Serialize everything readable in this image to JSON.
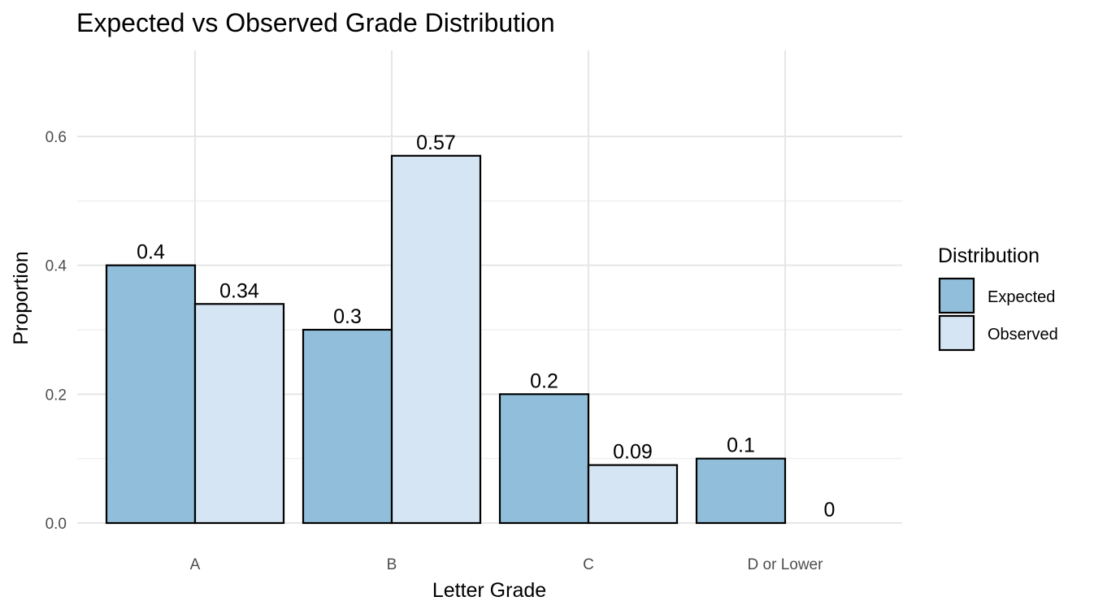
{
  "chart_data": {
    "type": "bar",
    "title": "Expected vs Observed Grade Distribution",
    "xlabel": "Letter Grade",
    "ylabel": "Proportion",
    "categories": [
      "A",
      "B",
      "C",
      "D or Lower"
    ],
    "series": [
      {
        "name": "Expected",
        "values": [
          0.4,
          0.3,
          0.2,
          0.1
        ],
        "labels": [
          "0.4",
          "0.3",
          "0.2",
          "0.1"
        ],
        "color": "#91bfdb"
      },
      {
        "name": "Observed",
        "values": [
          0.34,
          0.57,
          0.09,
          0
        ],
        "labels": [
          "0.34",
          "0.57",
          "0.09",
          "0"
        ],
        "color": "#d6e5f3"
      }
    ],
    "ylim": [
      0,
      0.7
    ],
    "yticks": [
      0.0,
      0.2,
      0.4,
      0.6
    ],
    "ytick_labels": [
      "0.0",
      "0.2",
      "0.4",
      "0.6"
    ],
    "grid": true,
    "legend": {
      "title": "Distribution",
      "position": "right"
    },
    "bar_border_color": "#000000"
  }
}
